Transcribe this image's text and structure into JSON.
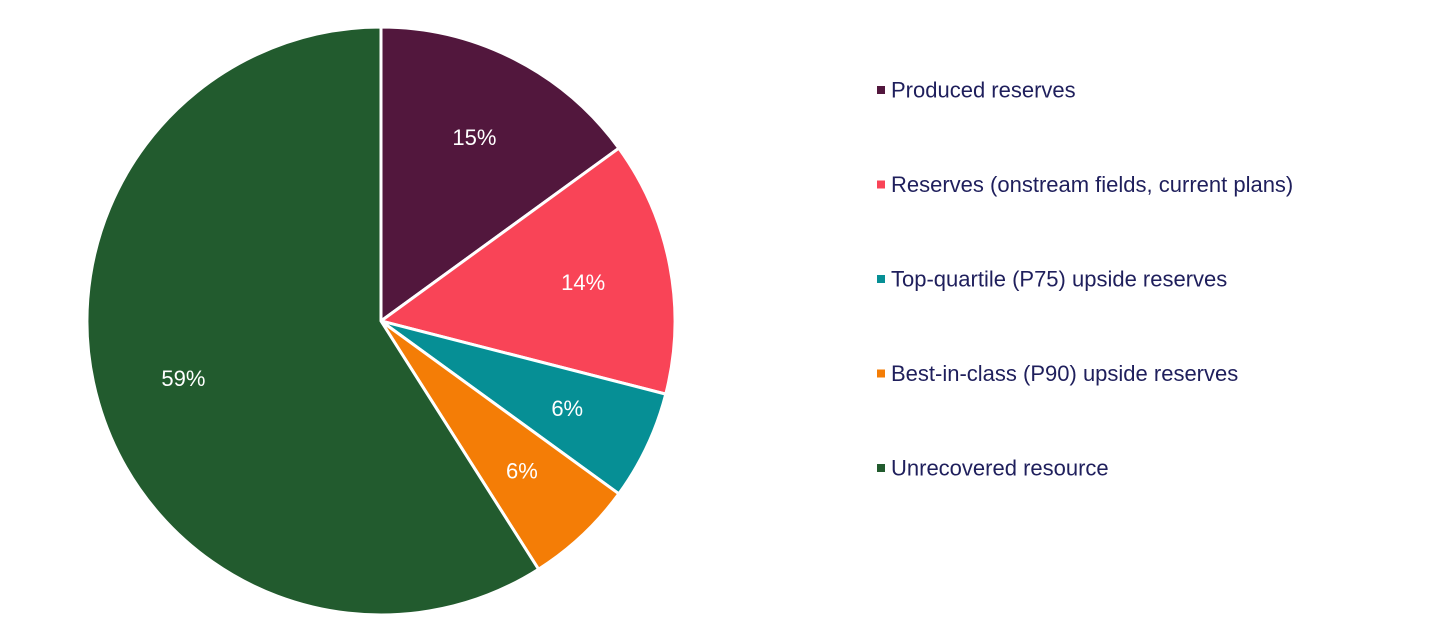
{
  "chart_data": {
    "type": "pie",
    "title": "",
    "legend_position": "right",
    "start_angle_deg": 0,
    "direction": "clockwise",
    "slices": [
      {
        "label": "Produced reserves",
        "value": 15,
        "display": "15%",
        "color": "#52173d"
      },
      {
        "label": "Reserves (onstream fields, current plans)",
        "value": 14,
        "display": "14%",
        "color": "#f94457"
      },
      {
        "label": "Top-quartile (P75) upside reserves",
        "value": 6,
        "display": "6%",
        "color": "#068f95"
      },
      {
        "label": "Best-in-class (P90) upside reserves",
        "value": 6,
        "display": "6%",
        "color": "#f47d06"
      },
      {
        "label": "Unrecovered resource",
        "value": 59,
        "display": "59%",
        "color": "#225b2e"
      }
    ]
  }
}
